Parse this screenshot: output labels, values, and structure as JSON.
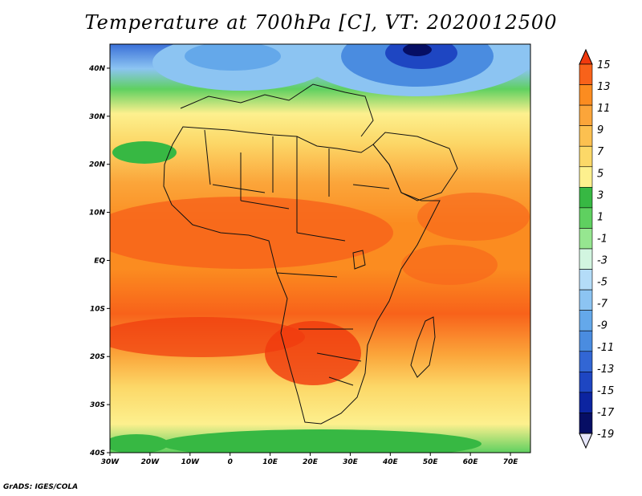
{
  "title": "Temperature at 700hPa [C], VT: 2020012500",
  "footer": "GrADS: IGES/COLA",
  "map": {
    "lon_range": [
      -30,
      75
    ],
    "lat_range": [
      -40,
      45
    ],
    "x_ticks": [
      "30W",
      "20W",
      "10W",
      "0",
      "10E",
      "20E",
      "30E",
      "40E",
      "50E",
      "60E",
      "70E"
    ],
    "y_ticks": [
      "40N",
      "30N",
      "20N",
      "10N",
      "EQ",
      "10S",
      "20S",
      "30S",
      "40S"
    ]
  },
  "colorbar": {
    "labels": [
      "15",
      "13",
      "11",
      "9",
      "7",
      "5",
      "3",
      "1",
      "-1",
      "-3",
      "-5",
      "-7",
      "-9",
      "-11",
      "-13",
      "-15",
      "-17",
      "-19"
    ],
    "colors": [
      "#f03a0e",
      "#f8621a",
      "#fb8c20",
      "#fba53a",
      "#fcc050",
      "#fcd868",
      "#fdf08e",
      "#37b843",
      "#5fd060",
      "#96e690",
      "#d2f5e0",
      "#b4dcf8",
      "#8cc4f2",
      "#64a8ea",
      "#4a8ce0",
      "#3266d4",
      "#1e46c2",
      "#0c24a0",
      "#060e64",
      "#e6e6fa"
    ]
  }
}
